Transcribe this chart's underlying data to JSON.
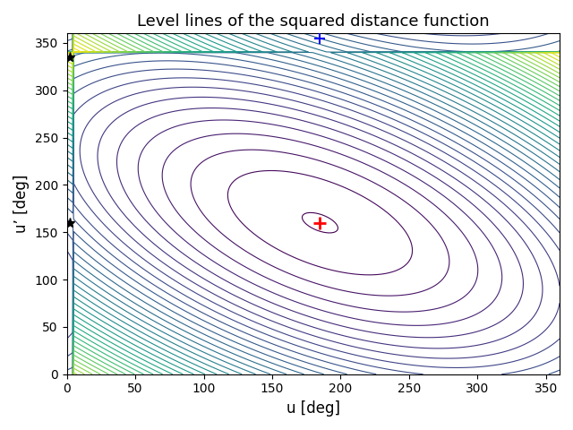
{
  "title": "Level lines of the squared distance function",
  "xlabel": "u [deg]",
  "ylabel": "u’ [deg]",
  "xlim": [
    0,
    360
  ],
  "ylim": [
    0,
    360
  ],
  "xticks": [
    0,
    50,
    100,
    150,
    200,
    250,
    300,
    350
  ],
  "yticks": [
    0,
    50,
    100,
    150,
    200,
    250,
    300,
    350
  ],
  "colormap": "viridis",
  "n_levels": 40,
  "u0": 185.0,
  "v0": 160.0,
  "red_marker_x": 185.0,
  "red_marker_y": 160.0,
  "blue_marker_x": 185.0,
  "blue_marker_y": 355.0,
  "black_star1_x": 2.0,
  "black_star1_y": 335.0,
  "black_star2_x": 2.0,
  "black_star2_y": 160.0,
  "figsize": [
    6.4,
    4.8
  ],
  "dpi": 100,
  "coeff_a": 1.0,
  "coeff_b": 1.5,
  "coeff_c": 1.3
}
